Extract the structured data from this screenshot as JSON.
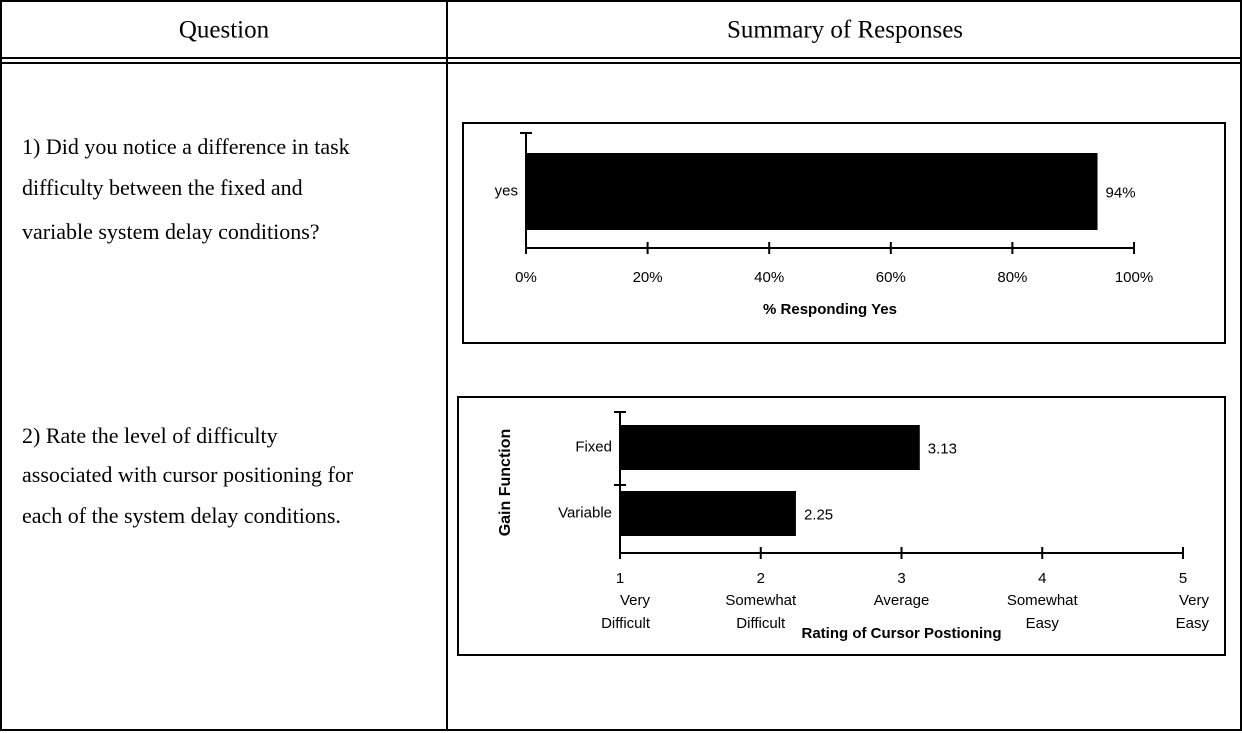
{
  "header": [
    "Question",
    "Summary of Responses"
  ],
  "rows": [
    {
      "question": [
        "1) Did you notice a difference in task",
        "difficulty between the fixed and",
        "variable system delay conditions?"
      ],
      "chart": {
        "type": "bar",
        "categories": [
          "yes"
        ],
        "values": [
          94
        ],
        "value_labels": [
          "94%"
        ],
        "xlim": [
          0,
          100
        ],
        "xticks": [
          {
            "value": 0,
            "label": "0%"
          },
          {
            "value": 20,
            "label": "20%"
          },
          {
            "value": 40,
            "label": "40%"
          },
          {
            "value": 60,
            "label": "60%"
          },
          {
            "value": 80,
            "label": "80%"
          },
          {
            "value": 100,
            "label": "100%"
          }
        ],
        "xlabel": "% Responding Yes",
        "color": "#000000"
      }
    },
    {
      "question": [
        "2) Rate the level of difficulty",
        "associated with cursor positioning for",
        "each of the system delay conditions."
      ],
      "chart": {
        "type": "bar",
        "categories": [
          "Fixed",
          "Variable"
        ],
        "values": [
          3.13,
          2.25
        ],
        "xlim": [
          1,
          5
        ],
        "xticks": [
          1,
          2,
          3,
          4,
          5
        ],
        "tick_descriptions": [
          [
            "Very",
            "Difficult"
          ],
          [
            "Somewhat",
            "Difficult"
          ],
          [
            "Average"
          ],
          [
            "Somewhat",
            "Easy"
          ],
          [
            "Very",
            "Easy"
          ]
        ],
        "xlabel": "Rating of Cursor Postioning",
        "ylabel": "Gain Function",
        "color": "#000000"
      }
    }
  ]
}
